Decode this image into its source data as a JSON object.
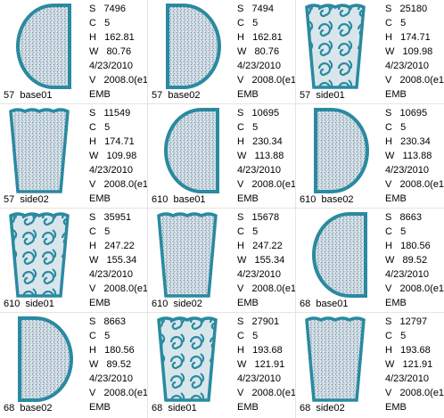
{
  "files": [
    {
      "name": "57  base01",
      "lines": [
        "S   7496",
        "C   5",
        "H   162.81",
        "W   80.76",
        "4/23/2010",
        "V   2008.0(e1",
        "EMB"
      ]
    },
    {
      "name": "57  base02",
      "lines": [
        "S   7494",
        "C   5",
        "H   162.81",
        "W   80.76",
        "4/23/2010",
        "V   2008.0(e1",
        "EMB"
      ]
    },
    {
      "name": "57  side01",
      "lines": [
        "S   25180",
        "C   5",
        "H   174.71",
        "W   109.98",
        "4/23/2010",
        "V   2008.0(e1",
        "EMB"
      ]
    },
    {
      "name": "57  side02",
      "lines": [
        "S   11549",
        "C   5",
        "H   174.71",
        "W   109.98",
        "4/23/2010",
        "V   2008.0(e1",
        "EMB"
      ]
    },
    {
      "name": "610  base01",
      "lines": [
        "S   10695",
        "C   5",
        "H   230.34",
        "W   113.88",
        "4/23/2010",
        "V   2008.0(e1",
        "EMB"
      ]
    },
    {
      "name": "610  base02",
      "lines": [
        "S   10695",
        "C   5",
        "H   230.34",
        "W   113.88",
        "4/23/2010",
        "V   2008.0(e1",
        "EMB"
      ]
    },
    {
      "name": "610  side01",
      "lines": [
        "S   35951",
        "C   5",
        "H   247.22",
        "W   155.34",
        "4/23/2010",
        "V   2008.0(e1",
        "EMB"
      ]
    },
    {
      "name": "610  side02",
      "lines": [
        "S   15678",
        "C   5",
        "H   247.22",
        "W   155.34",
        "4/23/2010",
        "V   2008.0(e1",
        "EMB"
      ]
    },
    {
      "name": "68  base01",
      "lines": [
        "S   8663",
        "C   5",
        "H   180.56",
        "W   89.52",
        "4/23/2010",
        "V   2008.0(e1",
        "EMB"
      ]
    },
    {
      "name": "68  base02",
      "lines": [
        "S   8663",
        "C   5",
        "H   180.56",
        "W   89.52",
        "4/23/2010",
        "V   2008.0(e1",
        "EMB"
      ]
    },
    {
      "name": "68  side01",
      "lines": [
        "S   27901",
        "C   5",
        "H   193.68",
        "W   121.91",
        "4/23/2010",
        "V   2008.0(e1",
        "EMB"
      ]
    },
    {
      "name": "68  side02",
      "lines": [
        "S   12797",
        "C   5",
        "H   193.68",
        "W   121.91",
        "4/23/2010",
        "V   2008.0(e1",
        "EMB"
      ]
    }
  ]
}
